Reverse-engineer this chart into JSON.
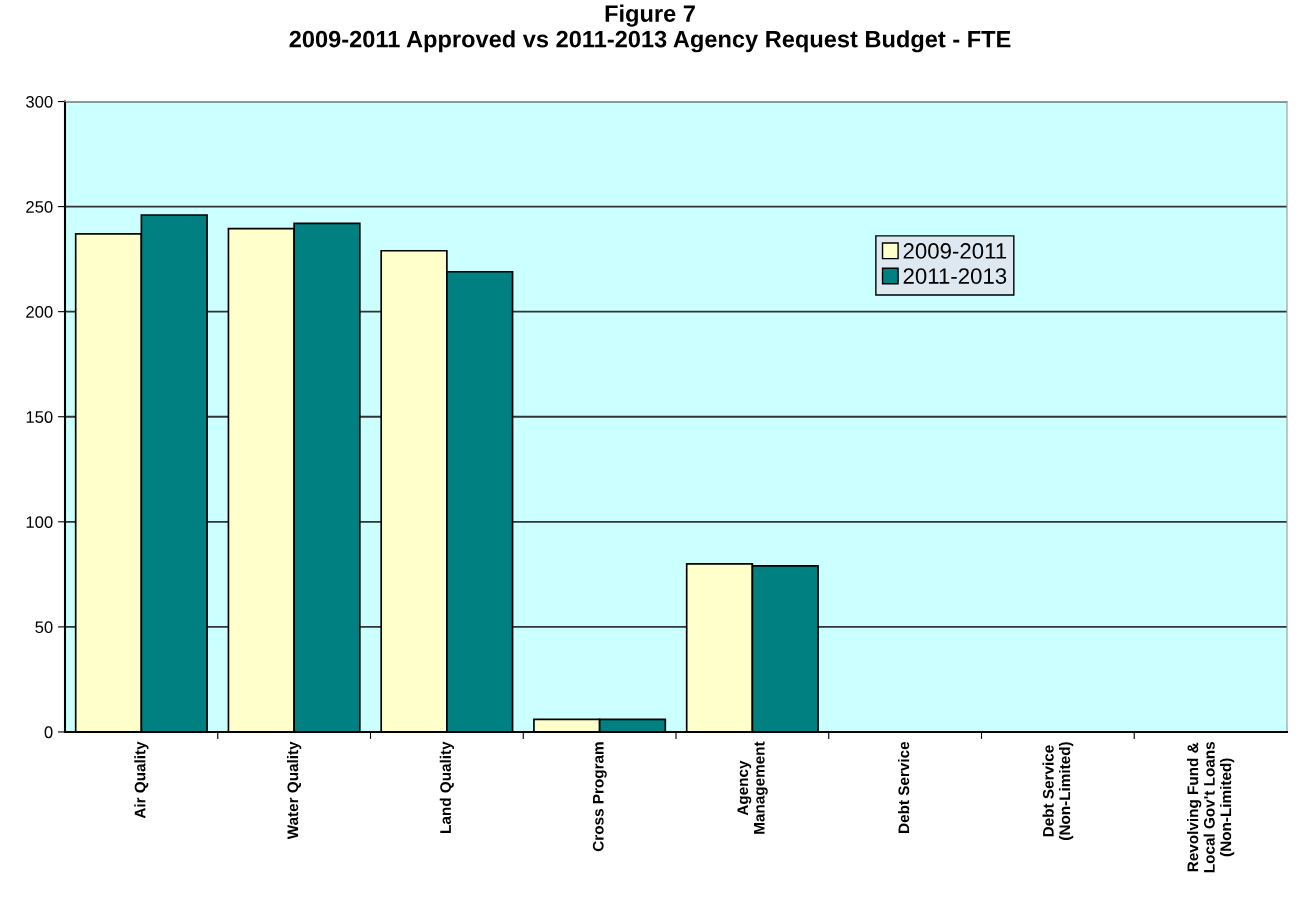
{
  "chart_data": {
    "type": "bar",
    "title": "Figure 7\n2009-2011 Approved vs 2011-2013 Agency Request Budget - FTE",
    "categories": [
      "Air Quality",
      "Water Quality",
      "Land Quality",
      "Cross Program",
      "Agency\nManagement",
      "Debt Service",
      "Debt Service\n(Non-Limited)",
      "Revolving Fund &\nLocal Gov't Loans\n(Non-Limited)"
    ],
    "series": [
      {
        "name": "2009-2011",
        "color": "#ffffcc",
        "values": [
          237,
          239.5,
          229,
          6,
          80,
          0,
          0,
          0
        ]
      },
      {
        "name": "2011-2013",
        "color": "#008080",
        "values": [
          246,
          242,
          219,
          6,
          79,
          0,
          0,
          0
        ]
      }
    ],
    "ylim": [
      0,
      300
    ],
    "yticks": [
      0,
      50,
      100,
      150,
      200,
      250,
      300
    ],
    "grid": "y",
    "legend": "top right"
  }
}
